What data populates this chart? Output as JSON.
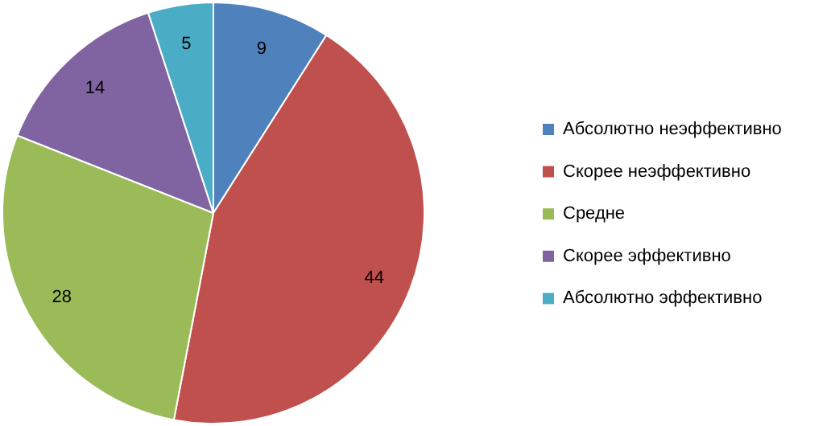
{
  "chart_data": {
    "type": "pie",
    "categories": [
      "Абсолютно неэффективно",
      "Скорее неэффективно",
      "Средне",
      "Скорее эффективно",
      "Абсолютно эффективно"
    ],
    "values": [
      9,
      44,
      28,
      14,
      5
    ],
    "colors": [
      "#4f81bd",
      "#c0504d",
      "#9bbb59",
      "#8064a2",
      "#4bacc6"
    ],
    "data_labels": true,
    "legend": "right"
  }
}
